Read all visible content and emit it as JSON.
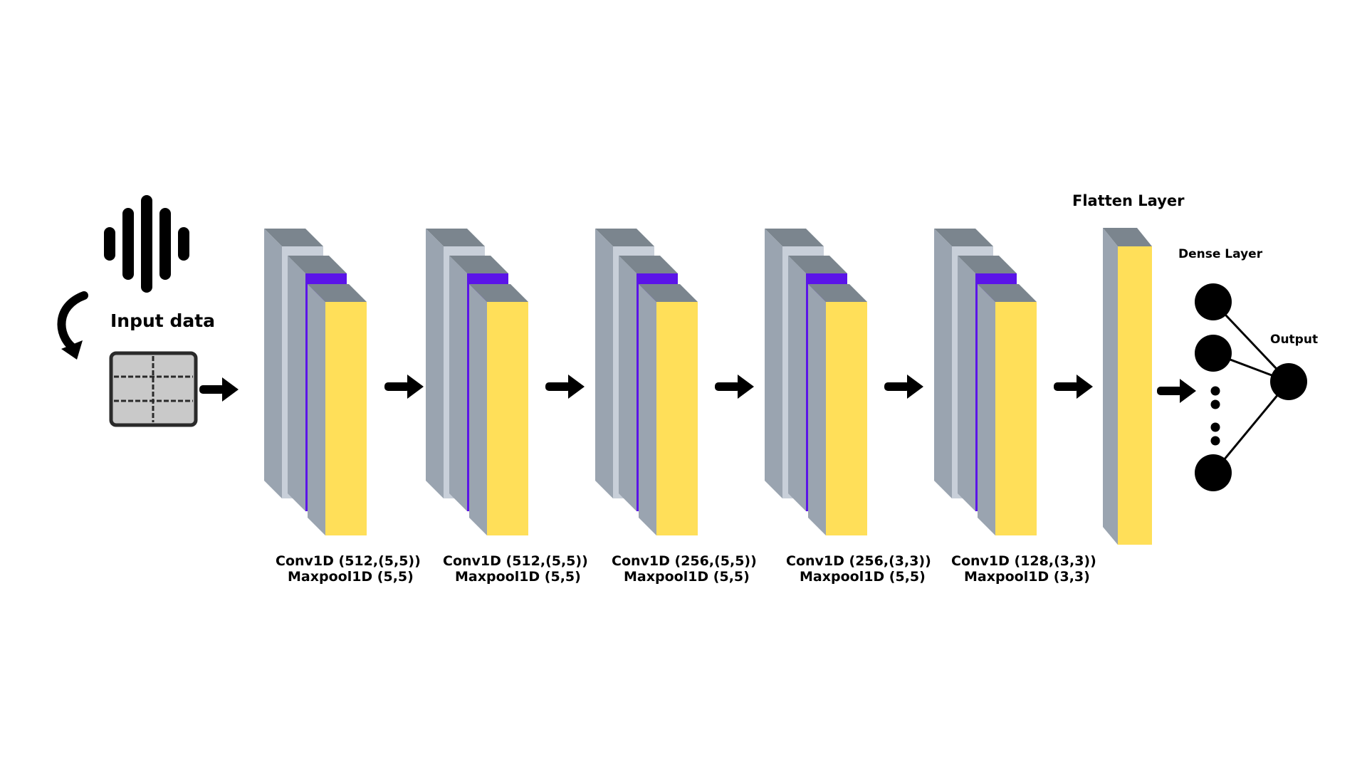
{
  "input": {
    "label": "Input data",
    "icons": [
      "sound-wave-icon",
      "curved-arrow-icon",
      "data-grid-icon"
    ]
  },
  "blocks": [
    {
      "conv": "Conv1D (512,(5,5))",
      "pool": "Maxpool1D (5,5)"
    },
    {
      "conv": "Conv1D (512,(5,5))",
      "pool": "Maxpool1D (5,5)"
    },
    {
      "conv": "Conv1D (256,(5,5))",
      "pool": "Maxpool1D (5,5)"
    },
    {
      "conv": "Conv1D (256,(3,3))",
      "pool": "Maxpool1D (5,5)"
    },
    {
      "conv": "Conv1D (128,(3,3))",
      "pool": "Maxpool1D (3,3)"
    }
  ],
  "flatten": {
    "label": "Flatten Layer"
  },
  "dense": {
    "label": "Dense Layer"
  },
  "output": {
    "label": "Output"
  },
  "colors": {
    "top_face": "#7b858e",
    "side_face": "#9aa4b0",
    "light_panel": "#c8cfd9",
    "accent": "#5b14e8",
    "feature_map": "#ffdf59",
    "ink": "#000000"
  }
}
